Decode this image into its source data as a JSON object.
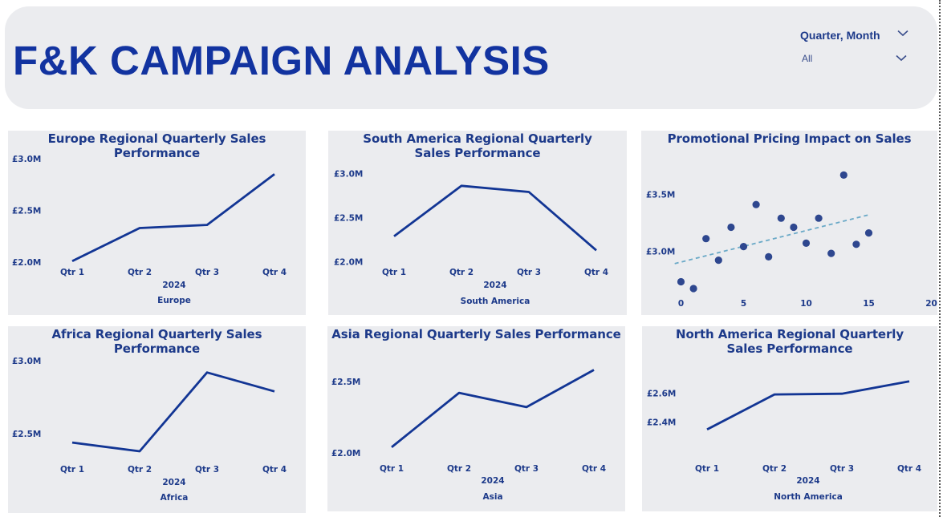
{
  "header": {
    "title": "F&K CAMPAIGN ANALYSIS",
    "filter": {
      "label": "Quarter, Month",
      "value": "All"
    },
    "colors": {
      "title": "#1233a0",
      "background": "#ebecef"
    },
    "icons": [
      "chevron-down-icon",
      "chevron-down-icon"
    ]
  },
  "chart_data": [
    {
      "type": "line",
      "title": "Europe Regional Quarterly Sales Performance",
      "categories": [
        "Qtr 1",
        "Qtr 2",
        "Qtr 3",
        "Qtr 4"
      ],
      "series": [
        {
          "values": [
            2.01,
            2.33,
            2.36,
            2.85
          ]
        }
      ],
      "ylim": [
        1.97,
        3.03
      ],
      "yticks": [
        2.0,
        2.5,
        3.0
      ],
      "yticklabels": [
        "£2.0M",
        "£2.5M",
        "£3.0M"
      ],
      "xgroup": "2024",
      "xlabel": "Europe"
    },
    {
      "type": "line",
      "title": "South America Regional Quarterly Sales Performance",
      "categories": [
        "Qtr 1",
        "Qtr 2",
        "Qtr 3",
        "Qtr 4"
      ],
      "series": [
        {
          "values": [
            2.29,
            2.86,
            2.79,
            2.13
          ]
        }
      ],
      "ylim": [
        1.97,
        3.03
      ],
      "yticks": [
        2.0,
        2.5,
        3.0
      ],
      "yticklabels": [
        "£2.0M",
        "£2.5M",
        "£3.0M"
      ],
      "xgroup": "2024",
      "xlabel": "South America"
    },
    {
      "type": "scatter",
      "title": "Promotional Pricing Impact on Sales",
      "points": [
        {
          "x": 0,
          "y": 2.73
        },
        {
          "x": 1,
          "y": 2.67
        },
        {
          "x": 2,
          "y": 3.11
        },
        {
          "x": 3,
          "y": 2.92
        },
        {
          "x": 4,
          "y": 3.21
        },
        {
          "x": 5,
          "y": 3.04
        },
        {
          "x": 6,
          "y": 3.41
        },
        {
          "x": 7,
          "y": 2.95
        },
        {
          "x": 8,
          "y": 3.29
        },
        {
          "x": 9,
          "y": 3.21
        },
        {
          "x": 10,
          "y": 3.07
        },
        {
          "x": 11,
          "y": 3.29
        },
        {
          "x": 12,
          "y": 2.98
        },
        {
          "x": 13,
          "y": 3.67
        },
        {
          "x": 14,
          "y": 3.06
        },
        {
          "x": 15,
          "y": 3.16
        }
      ],
      "trendline": {
        "x": [
          -0.5,
          15
        ],
        "y": [
          2.89,
          3.32
        ],
        "style": "dashed",
        "color": "#6aa9c7"
      },
      "xlim": [
        -0.3,
        20
      ],
      "xticks": [
        0,
        5,
        10,
        15,
        20
      ],
      "ylim": [
        2.55,
        3.8
      ],
      "yticks": [
        3.0,
        3.5
      ],
      "yticklabels": [
        "£3.0M",
        "£3.5M"
      ]
    },
    {
      "type": "line",
      "title": "Africa Regional Quarterly Sales Performance",
      "categories": [
        "Qtr 1",
        "Qtr 2",
        "Qtr 3",
        "Qtr 4"
      ],
      "series": [
        {
          "values": [
            2.44,
            2.38,
            2.92,
            2.79
          ]
        }
      ],
      "ylim": [
        2.27,
        3.05
      ],
      "yticks": [
        2.5,
        3.0
      ],
      "yticklabels": [
        "£2.5M",
        "£3.0M"
      ],
      "xgroup": "2024",
      "xlabel": "Africa"
    },
    {
      "type": "line",
      "title": "Asia Regional Quarterly Sales Performance",
      "categories": [
        "Qtr 1",
        "Qtr 2",
        "Qtr 3",
        "Qtr 4"
      ],
      "series": [
        {
          "values": [
            2.04,
            2.42,
            2.32,
            2.58
          ]
        }
      ],
      "ylim": [
        1.95,
        2.65
      ],
      "yticks": [
        2.0,
        2.5
      ],
      "yticklabels": [
        "£2.0M",
        "£2.5M"
      ],
      "xgroup": "2024",
      "xlabel": "Asia"
    },
    {
      "type": "line",
      "title": "North America Regional Quarterly Sales Performance",
      "categories": [
        "Qtr 1",
        "Qtr 2",
        "Qtr 3",
        "Qtr 4"
      ],
      "series": [
        {
          "values": [
            2.35,
            2.59,
            2.595,
            2.68
          ]
        }
      ],
      "ylim": [
        2.25,
        2.75
      ],
      "yticks": [
        2.4,
        2.6
      ],
      "yticklabels": [
        "£2.4M",
        "£2.6M"
      ],
      "xgroup": "2024",
      "xlabel": "North America"
    }
  ]
}
